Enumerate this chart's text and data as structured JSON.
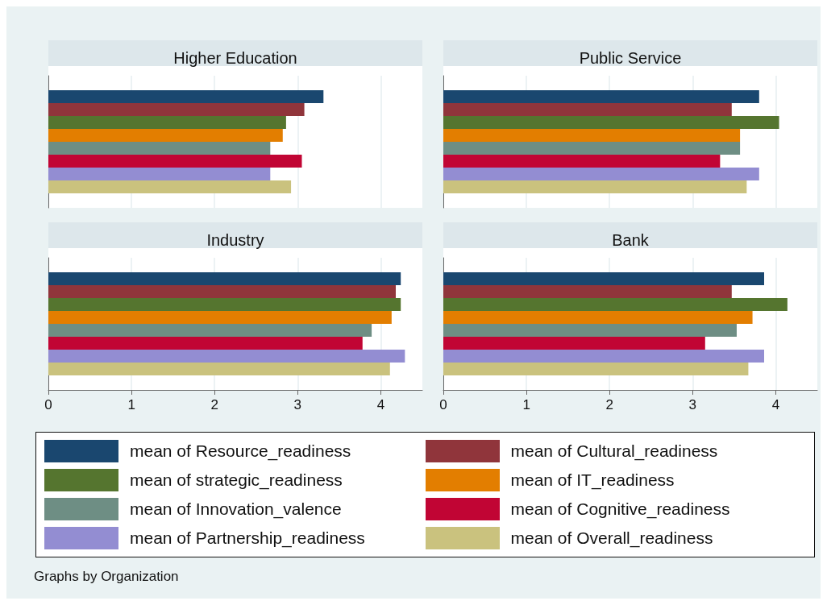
{
  "chart_data": [
    {
      "type": "bar",
      "orientation": "horizontal",
      "title": "Higher Education",
      "categories": [
        null
      ],
      "xlim": [
        0,
        4.5
      ],
      "xticks": [
        0,
        1,
        2,
        3,
        4
      ],
      "grid": "x",
      "tick_labels": false,
      "legend": "bottom",
      "annotations": [
        "Graphs by Organization"
      ],
      "series": [
        {
          "name": "mean of Resource_readiness",
          "color": "#1a476f",
          "values": [
            3.31
          ]
        },
        {
          "name": "mean of Cultural_readiness",
          "color": "#90353b",
          "values": [
            3.08
          ]
        },
        {
          "name": "mean of strategic_readiness",
          "color": "#55752f",
          "values": [
            2.86
          ]
        },
        {
          "name": "mean of IT_readiness",
          "color": "#e37e00",
          "values": [
            2.82
          ]
        },
        {
          "name": "mean of Innovation_valence",
          "color": "#6e8e84",
          "values": [
            2.67
          ]
        },
        {
          "name": "mean of Cognitive_readiness",
          "color": "#c10534",
          "values": [
            3.05
          ]
        },
        {
          "name": "mean of Partnership_readiness",
          "color": "#938dd2",
          "values": [
            2.67
          ]
        },
        {
          "name": "mean of Overall_readiness",
          "color": "#cac27e",
          "values": [
            2.92
          ]
        }
      ]
    },
    {
      "type": "bar",
      "orientation": "horizontal",
      "title": "Public Service",
      "categories": [
        null
      ],
      "xlim": [
        0,
        4.5
      ],
      "xticks": [
        0,
        1,
        2,
        3,
        4
      ],
      "grid": "x",
      "tick_labels": false,
      "series": [
        {
          "color": "#1a476f",
          "values": [
            3.8
          ]
        },
        {
          "color": "#90353b",
          "values": [
            3.47
          ]
        },
        {
          "color": "#55752f",
          "values": [
            4.04
          ]
        },
        {
          "color": "#e37e00",
          "values": [
            3.57
          ]
        },
        {
          "color": "#6e8e84",
          "values": [
            3.57
          ]
        },
        {
          "color": "#c10534",
          "values": [
            3.33
          ]
        },
        {
          "color": "#938dd2",
          "values": [
            3.8
          ]
        },
        {
          "color": "#cac27e",
          "values": [
            3.65
          ]
        }
      ]
    },
    {
      "type": "bar",
      "orientation": "horizontal",
      "title": "Industry",
      "categories": [
        null
      ],
      "xlim": [
        0,
        4.5
      ],
      "xticks": [
        0,
        1,
        2,
        3,
        4
      ],
      "grid": "x",
      "tick_labels": "x",
      "series": [
        {
          "color": "#1a476f",
          "values": [
            4.24
          ]
        },
        {
          "color": "#90353b",
          "values": [
            4.18
          ]
        },
        {
          "color": "#55752f",
          "values": [
            4.24
          ]
        },
        {
          "color": "#e37e00",
          "values": [
            4.13
          ]
        },
        {
          "color": "#6e8e84",
          "values": [
            3.89
          ]
        },
        {
          "color": "#c10534",
          "values": [
            3.78
          ]
        },
        {
          "color": "#938dd2",
          "values": [
            4.29
          ]
        },
        {
          "color": "#cac27e",
          "values": [
            4.11
          ]
        }
      ]
    },
    {
      "type": "bar",
      "orientation": "horizontal",
      "title": "Bank",
      "categories": [
        null
      ],
      "xlim": [
        0,
        4.5
      ],
      "xticks": [
        0,
        1,
        2,
        3,
        4
      ],
      "grid": "x",
      "tick_labels": "x",
      "series": [
        {
          "color": "#1a476f",
          "values": [
            3.86
          ]
        },
        {
          "color": "#90353b",
          "values": [
            3.47
          ]
        },
        {
          "color": "#55752f",
          "values": [
            4.14
          ]
        },
        {
          "color": "#e37e00",
          "values": [
            3.72
          ]
        },
        {
          "color": "#6e8e84",
          "values": [
            3.53
          ]
        },
        {
          "color": "#c10534",
          "values": [
            3.15
          ]
        },
        {
          "color": "#938dd2",
          "values": [
            3.86
          ]
        },
        {
          "color": "#cac27e",
          "values": [
            3.67
          ]
        }
      ]
    }
  ]
}
